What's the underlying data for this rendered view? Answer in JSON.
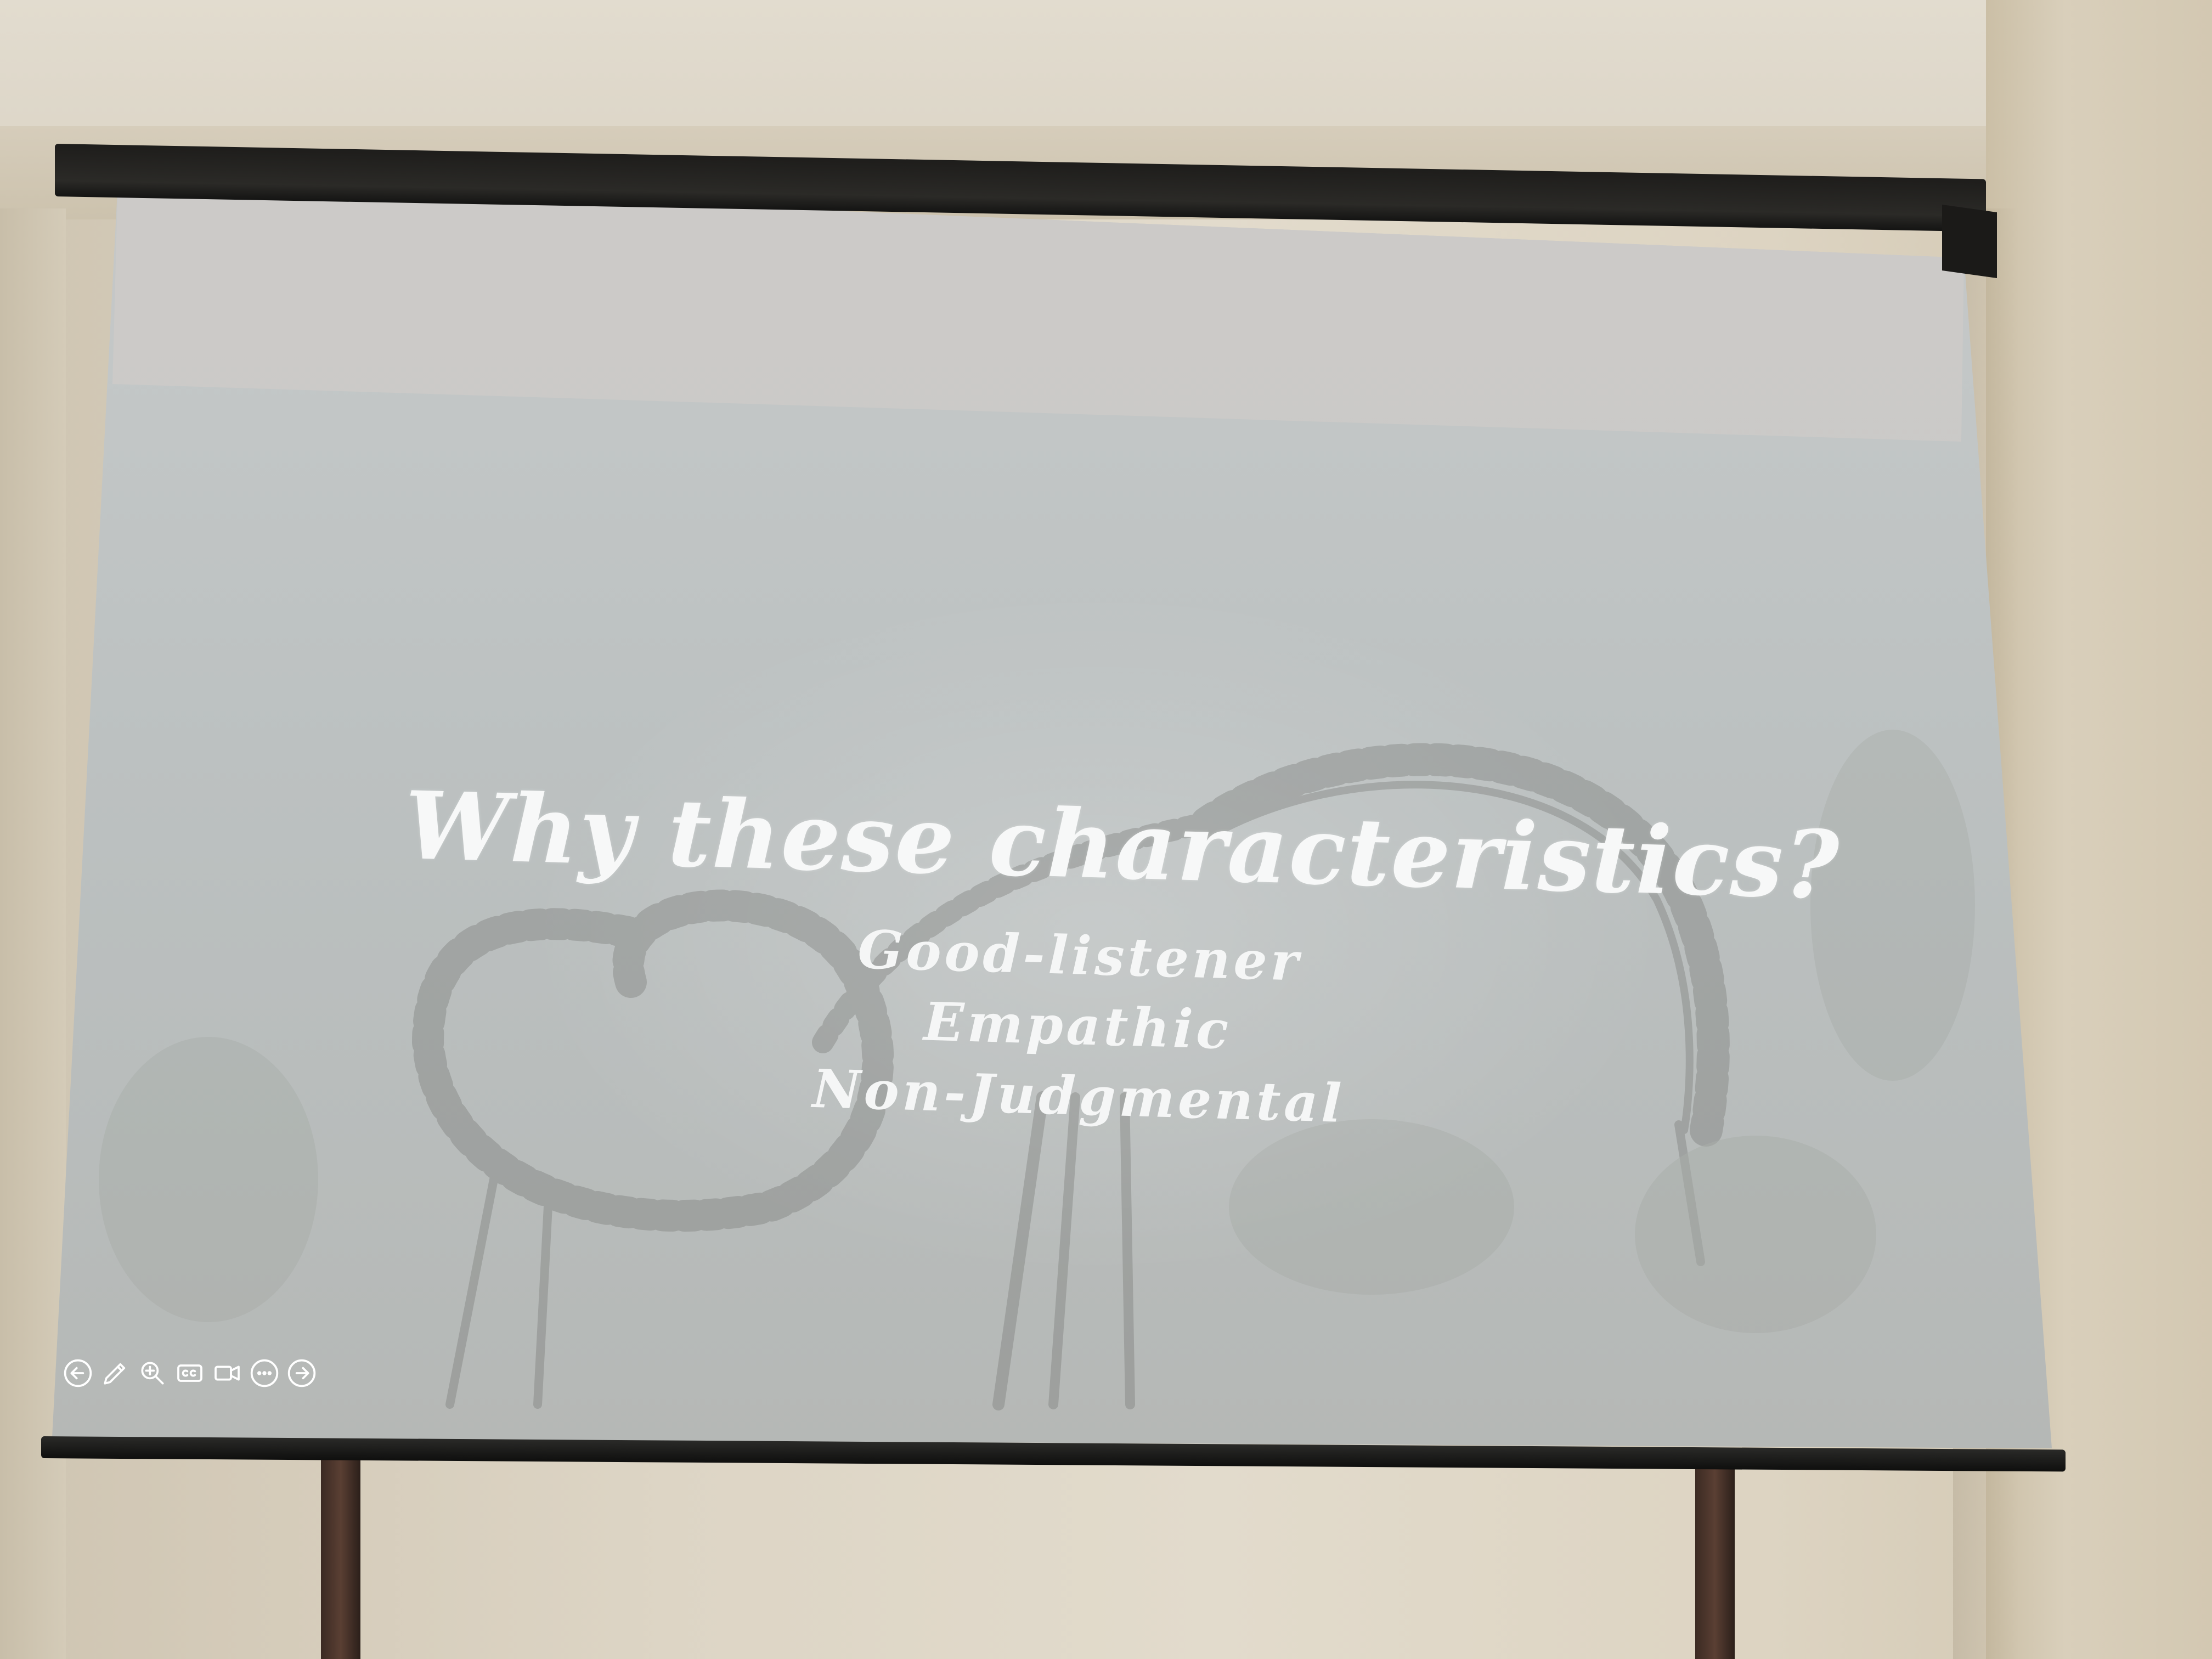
{
  "slide": {
    "title": "Why these characteristics?",
    "items": [
      "Good-listener",
      "Empathic",
      "Non-Judgmental"
    ]
  },
  "toolbar": {
    "buttons": [
      {
        "name": "previous-slide-button",
        "icon": "arrow-left-circle-icon"
      },
      {
        "name": "pen-button",
        "icon": "pencil-icon"
      },
      {
        "name": "zoom-button",
        "icon": "magnifier-icon"
      },
      {
        "name": "subtitles-button",
        "icon": "closed-captions-icon"
      },
      {
        "name": "camera-button",
        "icon": "video-camera-icon"
      },
      {
        "name": "more-options-button",
        "icon": "more-dots-icon"
      },
      {
        "name": "next-slide-button",
        "icon": "arrow-right-circle-icon"
      }
    ]
  },
  "colors": {
    "slide_text": "#f7f8f8",
    "screen": "#bcc1c1",
    "housing": "#1e1d1b",
    "wall": "#ddd5c5"
  }
}
